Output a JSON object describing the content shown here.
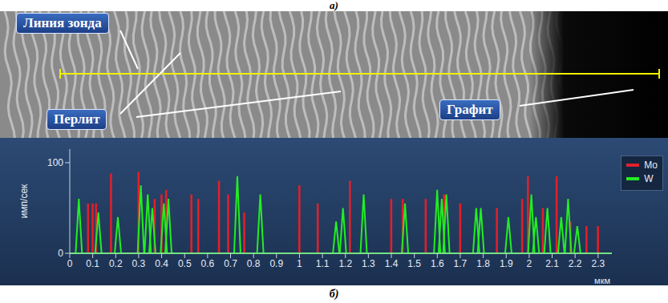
{
  "image_panel": {
    "title": "а)",
    "labels": {
      "probe_line": "Линия зонда",
      "pearlite": "Перлит",
      "graphite": "Графит"
    }
  },
  "chart_data": {
    "type": "bar",
    "title": "б)",
    "y_label": "имп/сек",
    "x_label": "мкм",
    "xlim": [
      0,
      2.36
    ],
    "xticks": [
      0,
      0.1,
      0.2,
      0.3,
      0.4,
      0.5,
      0.6,
      0.7,
      0.8,
      0.9,
      1,
      1.1,
      1.2,
      1.3,
      1.4,
      1.5,
      1.6,
      1.7,
      1.8,
      1.9,
      2,
      2.1,
      2.2,
      2.3
    ],
    "ylim": [
      0,
      115
    ],
    "yticks": [
      0,
      100
    ],
    "legend": "right",
    "series": [
      {
        "name": "Mo",
        "color": "#e0202a",
        "type": "bar",
        "x": [
          0.08,
          0.1,
          0.115,
          0.18,
          0.3,
          0.37,
          0.4,
          0.42,
          0.53,
          0.56,
          0.65,
          0.69,
          0.76,
          1.0,
          1.08,
          1.22,
          1.4,
          1.45,
          1.55,
          1.63,
          1.7,
          1.86,
          1.97,
          1.995,
          2.06,
          2.12,
          2.18,
          2.25,
          2.3
        ],
        "values": [
          55,
          55,
          55,
          88,
          90,
          60,
          65,
          70,
          65,
          60,
          80,
          65,
          45,
          75,
          55,
          80,
          60,
          60,
          60,
          65,
          55,
          50,
          60,
          85,
          50,
          85,
          35,
          30,
          30
        ]
      },
      {
        "name": "W",
        "color": "#22ee22",
        "type": "line",
        "x": [
          0.04,
          0.125,
          0.21,
          0.31,
          0.34,
          0.36,
          0.41,
          0.43,
          0.73,
          0.83,
          1.16,
          1.19,
          1.28,
          1.46,
          1.6,
          1.62,
          1.64,
          1.77,
          1.79,
          1.91,
          2.01,
          2.03,
          2.08,
          2.14,
          2.17,
          2.21
        ],
        "values": [
          60,
          45,
          40,
          75,
          65,
          50,
          55,
          60,
          85,
          65,
          35,
          50,
          65,
          55,
          70,
          60,
          65,
          50,
          50,
          40,
          65,
          40,
          50,
          40,
          60,
          30
        ]
      }
    ]
  }
}
